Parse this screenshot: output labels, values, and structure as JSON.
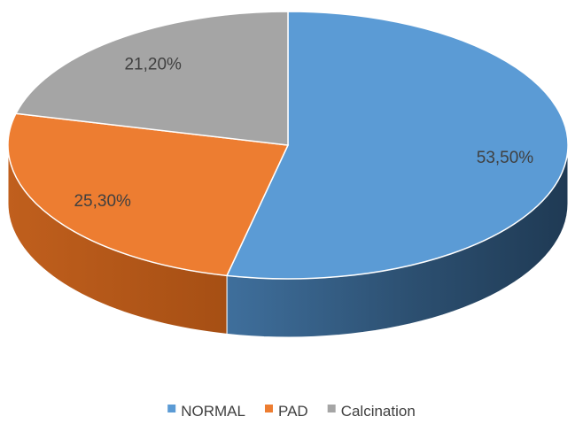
{
  "chart_data": {
    "type": "pie",
    "title": "",
    "style": "3d",
    "legend_position": "bottom",
    "series": [
      {
        "name": "NORMAL",
        "value": 53.5,
        "label": "53,50%",
        "color": "#5B9BD5"
      },
      {
        "name": "PAD",
        "value": 25.3,
        "label": "25,30%",
        "color": "#ED7D31"
      },
      {
        "name": "Calcination",
        "value": 21.2,
        "label": "21,20%",
        "color": "#A5A5A5"
      }
    ]
  }
}
